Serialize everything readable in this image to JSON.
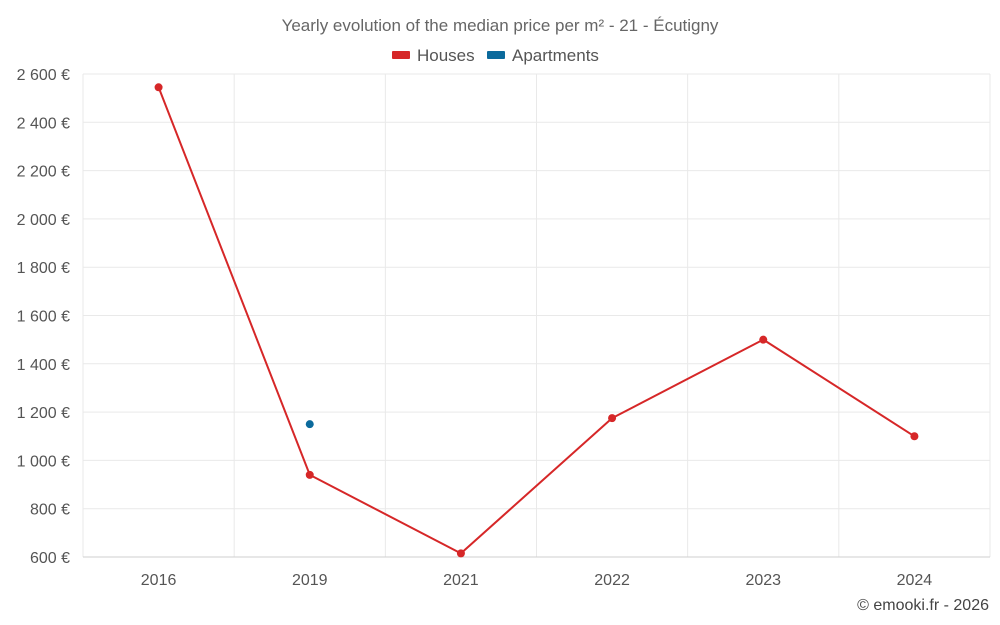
{
  "chart_data": {
    "type": "line",
    "title": "Yearly evolution of the median price per m² - 21 - Écutigny",
    "categories": [
      "2016",
      "2019",
      "2021",
      "2022",
      "2023",
      "2024"
    ],
    "ylim": [
      600,
      2600
    ],
    "yticks": [
      600,
      800,
      1000,
      1200,
      1400,
      1600,
      1800,
      2000,
      2200,
      2400,
      2600
    ],
    "ytick_labels": [
      "600 €",
      "800 €",
      "1 000 €",
      "1 200 €",
      "1 400 €",
      "1 600 €",
      "1 800 €",
      "2 000 €",
      "2 200 €",
      "2 400 €",
      "2 600 €"
    ],
    "xlabel": "",
    "ylabel": "",
    "grid": true,
    "legend_position": "top-center",
    "series": [
      {
        "name": "Houses",
        "color": "#d62728",
        "values": [
          2545,
          940,
          615,
          1175,
          1500,
          1100
        ]
      },
      {
        "name": "Apartments",
        "color": "#0b6a9c",
        "values": [
          null,
          1150,
          null,
          null,
          null,
          null
        ]
      }
    ]
  },
  "credit": "© emooki.fr - 2026"
}
